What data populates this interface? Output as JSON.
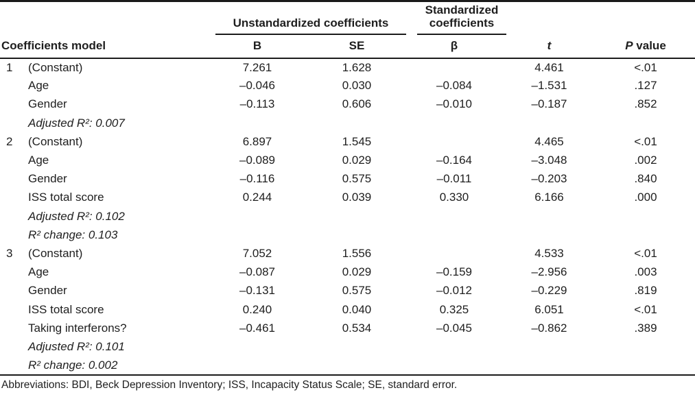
{
  "colors": {
    "text": "#1e1e1e",
    "rule": "#1a1a1a",
    "background": "#ffffff"
  },
  "table": {
    "col_groups": {
      "unstandardized": "Unstandardized coefficients",
      "standardized": "Standardized coefficients"
    },
    "headers": {
      "model": "Coefficients model",
      "b": "B",
      "se": "SE",
      "beta": "β",
      "t": "t",
      "p_letter": "P",
      "p_word": "value"
    },
    "models": [
      {
        "number": "1",
        "rows": [
          {
            "label": "(Constant)",
            "b": "7.261",
            "se": "1.628",
            "beta": "",
            "t": "4.461",
            "p": "<.01"
          },
          {
            "label": "Age",
            "b": "–0.046",
            "se": "0.030",
            "beta": "–0.084",
            "t": "–1.531",
            "p": ".127"
          },
          {
            "label": "Gender",
            "b": "–0.113",
            "se": "0.606",
            "beta": "–0.010",
            "t": "–0.187",
            "p": ".852"
          }
        ],
        "notes": [
          "Adjusted R²: 0.007"
        ]
      },
      {
        "number": "2",
        "rows": [
          {
            "label": "(Constant)",
            "b": "6.897",
            "se": "1.545",
            "beta": "",
            "t": "4.465",
            "p": "<.01"
          },
          {
            "label": "Age",
            "b": "–0.089",
            "se": "0.029",
            "beta": "–0.164",
            "t": "–3.048",
            "p": ".002"
          },
          {
            "label": "Gender",
            "b": "–0.116",
            "se": "0.575",
            "beta": "–0.011",
            "t": "–0.203",
            "p": ".840"
          },
          {
            "label": "ISS total score",
            "b": "0.244",
            "se": "0.039",
            "beta": "0.330",
            "t": "6.166",
            "p": ".000"
          }
        ],
        "notes": [
          "Adjusted R²: 0.102",
          "R² change: 0.103"
        ]
      },
      {
        "number": "3",
        "rows": [
          {
            "label": "(Constant)",
            "b": "7.052",
            "se": "1.556",
            "beta": "",
            "t": "4.533",
            "p": "<.01"
          },
          {
            "label": "Age",
            "b": "–0.087",
            "se": "0.029",
            "beta": "–0.159",
            "t": "–2.956",
            "p": ".003"
          },
          {
            "label": "Gender",
            "b": "–0.131",
            "se": "0.575",
            "beta": "–0.012",
            "t": "–0.229",
            "p": ".819"
          },
          {
            "label": "ISS total score",
            "b": "0.240",
            "se": "0.040",
            "beta": "0.325",
            "t": "6.051",
            "p": "<.01"
          },
          {
            "label": "Taking interferons?",
            "b": "–0.461",
            "se": "0.534",
            "beta": "–0.045",
            "t": "–0.862",
            "p": ".389"
          }
        ],
        "notes": [
          "Adjusted R²: 0.101",
          "R² change: 0.002"
        ]
      }
    ],
    "footnote": "Abbreviations: BDI, Beck Depression Inventory; ISS, Incapacity Status Scale; SE, standard error."
  }
}
